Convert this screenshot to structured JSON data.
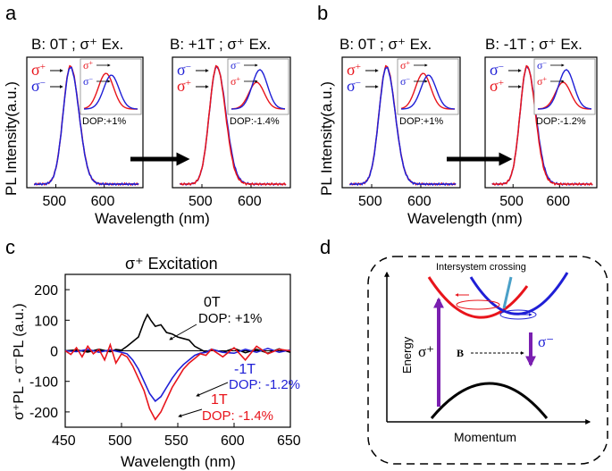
{
  "panel_labels": {
    "a": "a",
    "b": "b",
    "c": "c",
    "d": "d"
  },
  "colors": {
    "sigma_plus": "#e8141b",
    "sigma_minus": "#1f1fd6",
    "zero_field": "#000000",
    "purple_arrow": "#7a1fb0",
    "green_arrow": "#4aa0c8"
  },
  "shared": {
    "ylabel_ab": "PL Intensity(a.u.)",
    "xlabel_ab": "Wavelength (nm)",
    "sp_symbol": "σ",
    "sup_plus": "+",
    "sup_minus": "−"
  },
  "panel_a": {
    "left": {
      "title": "B: 0T ; σ⁺ Ex.",
      "dop": "DOP:+1%",
      "ticks": [
        "500",
        "600"
      ]
    },
    "right": {
      "title": "B: +1T ; σ⁺ Ex.",
      "dop": "DOP:-1.4%",
      "ticks": [
        "500",
        "600"
      ]
    }
  },
  "panel_b": {
    "left": {
      "title": "B: 0T ; σ⁺ Ex.",
      "dop": "DOP:+1%",
      "ticks": [
        "500",
        "600"
      ]
    },
    "right": {
      "title": "B: -1T ; σ⁺ Ex.",
      "dop": "DOP:-1.2%",
      "ticks": [
        "500",
        "600"
      ]
    }
  },
  "chart_data": {
    "type": "line",
    "title": "σ⁺ Excitation",
    "xlabel": "Wavelength (nm)",
    "ylabel": "σ⁺PL - σ⁻PL (a.u.)",
    "xlim": [
      450,
      650
    ],
    "ylim": [
      -250,
      250
    ],
    "xticks": [
      "450",
      "500",
      "550",
      "600",
      "650"
    ],
    "yticks": [
      "200",
      "100",
      "0",
      "-100",
      "-200"
    ],
    "series": [
      {
        "name": "0T",
        "dop": "DOP: +1%",
        "x": [
          450,
          460,
          470,
          480,
          490,
          495,
          500,
          505,
          510,
          515,
          520,
          523,
          526,
          530,
          535,
          540,
          545,
          550,
          555,
          560,
          565,
          570,
          575,
          580,
          590,
          600,
          610,
          620,
          630,
          640,
          650
        ],
        "y": [
          0,
          3,
          -4,
          5,
          -3,
          4,
          2,
          15,
          30,
          45,
          95,
          118,
          100,
          80,
          85,
          60,
          55,
          45,
          40,
          35,
          15,
          5,
          -5,
          5,
          -5,
          8,
          -6,
          5,
          -8,
          6,
          -5
        ]
      },
      {
        "name": "-1T",
        "dop": "DOP: -1.2%",
        "x": [
          450,
          460,
          470,
          480,
          490,
          500,
          505,
          510,
          515,
          520,
          525,
          530,
          535,
          540,
          545,
          550,
          555,
          560,
          565,
          570,
          575,
          580,
          590,
          600,
          610,
          620,
          630,
          640,
          650
        ],
        "y": [
          0,
          -3,
          5,
          -5,
          3,
          -5,
          -10,
          -30,
          -60,
          -100,
          -140,
          -165,
          -150,
          -120,
          -90,
          -65,
          -45,
          -30,
          -15,
          -8,
          -5,
          5,
          -5,
          -8,
          5,
          -5,
          8,
          -5,
          3
        ]
      },
      {
        "name": "1T",
        "dop": "DOP: -1.4%",
        "x": [
          450,
          455,
          460,
          465,
          470,
          475,
          480,
          485,
          490,
          495,
          500,
          505,
          510,
          515,
          520,
          525,
          530,
          535,
          540,
          545,
          550,
          555,
          560,
          565,
          570,
          575,
          580,
          590,
          600,
          610,
          620,
          630,
          640,
          650
        ],
        "y": [
          0,
          -12,
          10,
          -20,
          15,
          -10,
          5,
          -30,
          20,
          -40,
          -10,
          -20,
          -50,
          -90,
          -130,
          -190,
          -225,
          -200,
          -160,
          -120,
          -90,
          -60,
          -40,
          -25,
          -10,
          -15,
          5,
          -20,
          10,
          -30,
          15,
          -10,
          5,
          0
        ]
      }
    ]
  },
  "diagram": {
    "intersystem_label": "Intersystem crossing",
    "energy_label": "Energy",
    "momentum_label": "Momentum",
    "b_label": "B",
    "sigma_plus": "σ⁺",
    "sigma_minus": "σ⁻"
  }
}
